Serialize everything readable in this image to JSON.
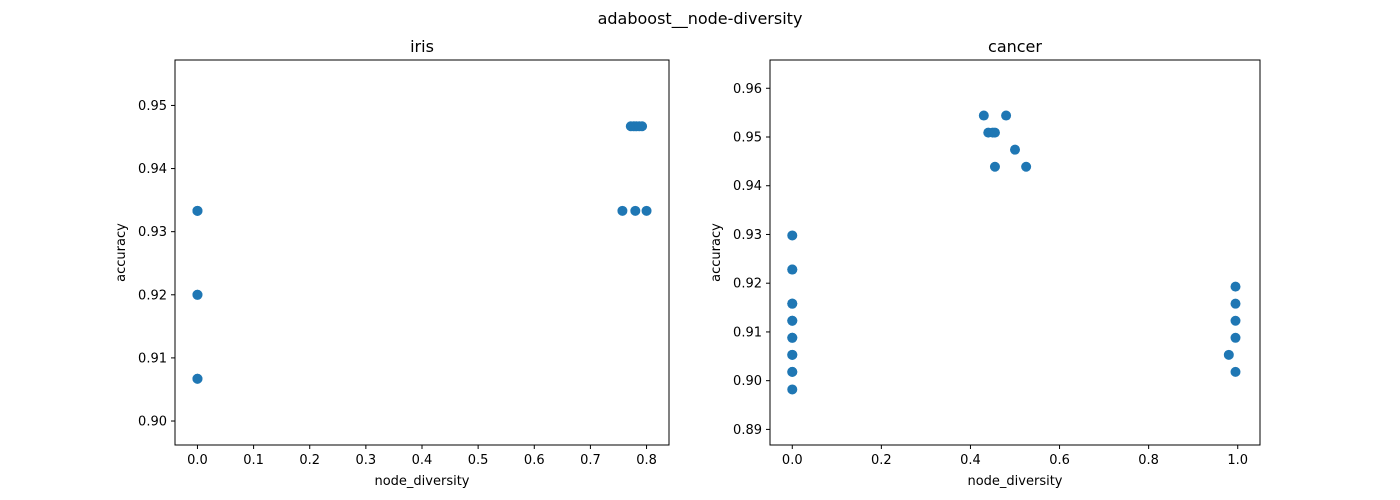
{
  "figure": {
    "suptitle": "adaboost__node-diversity"
  },
  "chart_data": [
    {
      "type": "scatter",
      "title": "iris",
      "xlabel": "node_diversity",
      "ylabel": "accuracy",
      "xlim": [
        -0.04,
        0.84
      ],
      "ylim": [
        0.8962,
        0.9572
      ],
      "xticks": [
        0.0,
        0.1,
        0.2,
        0.3,
        0.4,
        0.5,
        0.6,
        0.7,
        0.8
      ],
      "xtick_labels": [
        "0.0",
        "0.1",
        "0.2",
        "0.3",
        "0.4",
        "0.5",
        "0.6",
        "0.7",
        "0.8"
      ],
      "yticks": [
        0.9,
        0.91,
        0.92,
        0.93,
        0.94,
        0.95
      ],
      "ytick_labels": [
        "0.90",
        "0.91",
        "0.92",
        "0.93",
        "0.94",
        "0.95"
      ],
      "grid": false,
      "color": "#1f77b4",
      "x": [
        0.0,
        0.0,
        0.0,
        0.0,
        0.0,
        0.0,
        0.757,
        0.772,
        0.777,
        0.782,
        0.787,
        0.792,
        0.78,
        0.8
      ],
      "y": [
        0.9333,
        0.9333,
        0.92,
        0.92,
        0.9067,
        0.9067,
        0.9333,
        0.9467,
        0.9467,
        0.9467,
        0.9467,
        0.9467,
        0.9333,
        0.9333
      ]
    },
    {
      "type": "scatter",
      "title": "cancer",
      "xlabel": "node_diversity",
      "ylabel": "accuracy",
      "xlim": [
        -0.05,
        1.05
      ],
      "ylim": [
        0.8868,
        0.9658
      ],
      "xticks": [
        0.0,
        0.2,
        0.4,
        0.6,
        0.8,
        1.0
      ],
      "xtick_labels": [
        "0.0",
        "0.2",
        "0.4",
        "0.6",
        "0.8",
        "1.0"
      ],
      "yticks": [
        0.89,
        0.9,
        0.91,
        0.92,
        0.93,
        0.94,
        0.95,
        0.96
      ],
      "ytick_labels": [
        "0.89",
        "0.90",
        "0.91",
        "0.92",
        "0.93",
        "0.94",
        "0.95",
        "0.96"
      ],
      "grid": false,
      "color": "#1f77b4",
      "x": [
        0.0,
        0.0,
        0.0,
        0.0,
        0.0,
        0.0,
        0.0,
        0.0,
        0.0,
        0.0,
        0.0,
        0.0,
        0.0,
        0.0,
        0.43,
        0.44,
        0.45,
        0.455,
        0.455,
        0.48,
        0.5,
        0.525,
        0.995,
        0.995,
        0.995,
        0.995,
        0.98,
        0.995
      ],
      "y": [
        0.9298,
        0.9228,
        0.9228,
        0.9158,
        0.9158,
        0.9123,
        0.9123,
        0.9088,
        0.9088,
        0.9053,
        0.9053,
        0.9018,
        0.9018,
        0.8982,
        0.9544,
        0.9509,
        0.9509,
        0.9509,
        0.9439,
        0.9544,
        0.9474,
        0.9439,
        0.9193,
        0.9158,
        0.9123,
        0.9088,
        0.9053,
        0.9018
      ]
    }
  ]
}
